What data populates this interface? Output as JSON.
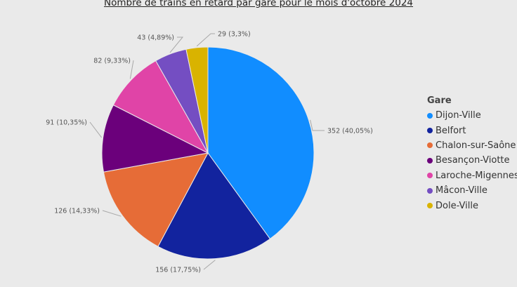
{
  "chart_data": {
    "type": "pie",
    "title": "Nombre de trains en retard par gare pour le mois d'octobre 2024",
    "legend_title": "Gare",
    "legend_position": "right",
    "slices": [
      {
        "name": "Dijon-Ville",
        "value": 352,
        "label": "352 (40,05%)",
        "color": "#118dff"
      },
      {
        "name": "Belfort",
        "value": 156,
        "label": "156 (17,75%)",
        "color": "#12239e"
      },
      {
        "name": "Chalon-sur-Saône",
        "value": 126,
        "label": "126 (14,33%)",
        "color": "#e66c37"
      },
      {
        "name": "Besançon-Viotte",
        "value": 91,
        "label": "91 (10,35%)",
        "color": "#6b007b"
      },
      {
        "name": "Laroche-Migennes",
        "value": 82,
        "label": "82 (9,33%)",
        "color": "#e044a7"
      },
      {
        "name": "Mâcon-Ville",
        "value": 43,
        "label": "43 (4,89%)",
        "color": "#744ec2"
      },
      {
        "name": "Dole-Ville",
        "value": 29,
        "label": "29 (3,3%)",
        "color": "#d9b300"
      }
    ]
  }
}
